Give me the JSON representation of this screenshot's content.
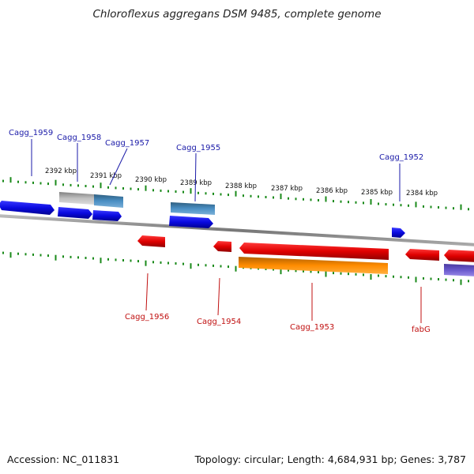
{
  "title": "Chloroflexus aggregans DSM 9485, complete genome",
  "footer": {
    "accession": "Accession: NC_011831",
    "summary": "Topology: circular; Length: 4,684,931 bp; Genes: 3,787"
  },
  "ticks": [
    {
      "label": "2392 kbp"
    },
    {
      "label": "2391 kbp"
    },
    {
      "label": "2390 kbp"
    },
    {
      "label": "2389 kbp"
    },
    {
      "label": "2388 kbp"
    },
    {
      "label": "2387 kbp"
    },
    {
      "label": "2386 kbp"
    },
    {
      "label": "2385 kbp"
    },
    {
      "label": "2384 kbp"
    }
  ],
  "genes_top": [
    {
      "name": "Cagg_1959"
    },
    {
      "name": "Cagg_1958"
    },
    {
      "name": "Cagg_1957"
    },
    {
      "name": "Cagg_1955"
    },
    {
      "name": "Cagg_1952"
    }
  ],
  "genes_bottom": [
    {
      "name": "Cagg_1956"
    },
    {
      "name": "Cagg_1954"
    },
    {
      "name": "Cagg_1953"
    },
    {
      "name": "fabG"
    }
  ],
  "colors": {
    "forward_gene": "#1010e0",
    "reverse_gene": "#e01010",
    "cds_forward": "#4a8fc4",
    "cds_reverse": "#ff8c00",
    "pseudo": "#c0c0c0",
    "other": "#6a5acd",
    "backbone": "#888888",
    "tick": "#1a8a1a",
    "label_forward": "#1a1aa8",
    "label_reverse": "#c01010"
  }
}
